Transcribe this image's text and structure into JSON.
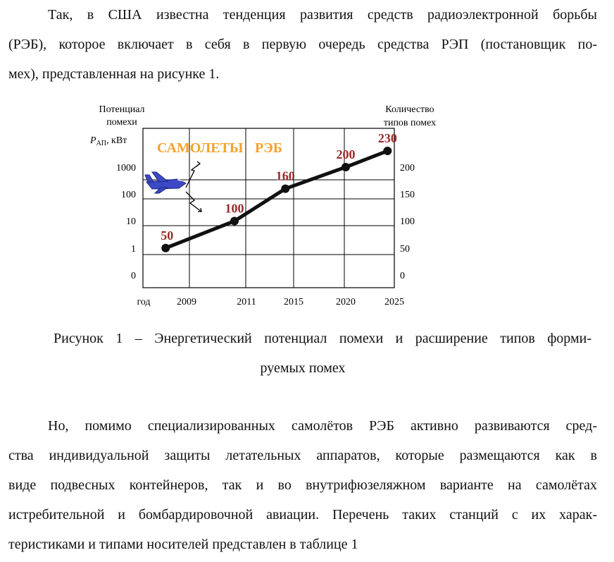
{
  "paragraph1": {
    "lines": [
      "Так, в США известна тенденция развития средств радиоэлектронной борьбы",
      "(РЭБ), которое включает в себя в первую очередь средства РЭП (постановщик по-",
      "мех), представленная на рисунке 1."
    ]
  },
  "figure": {
    "left_axis_title_line1": "Потенциал",
    "left_axis_title_line2": "помехи",
    "left_axis_unit_symbol": "P",
    "left_axis_unit_sub": "АП",
    "left_axis_unit_tail": ", кВт",
    "right_axis_title_line1": "Количество",
    "right_axis_title_line2": "типов помех",
    "banner_left": "САМОЛЕТЫ",
    "banner_right": "РЭБ",
    "x_axis_title": "год",
    "accent_color": "#f4a12a",
    "label_color": "#9b2a2a",
    "plane_color": "#3b49c4"
  },
  "chart_data": {
    "type": "line",
    "x": [
      2009,
      2011,
      2015,
      2020,
      2025
    ],
    "x_tick_labels": [
      "2009",
      "2011",
      "2015",
      "2020",
      "2025"
    ],
    "left_tick_labels": [
      "1000",
      "100",
      "10",
      "1",
      "0"
    ],
    "right_tick_labels": [
      "200",
      "150",
      "100",
      "50",
      "0"
    ],
    "series": [
      {
        "x": [
          2008.3,
          2010.6,
          2014.3,
          2020.0,
          2024.3
        ],
        "y": [
          50,
          100,
          160,
          200,
          230
        ],
        "labels": [
          "50",
          "100",
          "160",
          "200",
          "230"
        ]
      }
    ],
    "xlim": [
      2007,
      2025
    ],
    "ylim_right": [
      0,
      250
    ],
    "grid": true
  },
  "caption": {
    "lines": [
      "Рисунок 1 – Энергетический потенциал помехи и расширение типов форми-",
      "руемых помех"
    ]
  },
  "paragraph2": {
    "lines": [
      "Но, помимо специализированных самолётов РЭБ активно развиваются сред-",
      "ства индивидуальной защиты летательных аппаратов, которые размещаются как в",
      "виде подвесных контейнеров, так и во внутрифюзеляжном варианте на самолётах",
      "истребительной и бомбардировочной авиации. Перечень таких станций с их харак-",
      "теристиками и типами носителей представлен в таблице 1"
    ]
  }
}
